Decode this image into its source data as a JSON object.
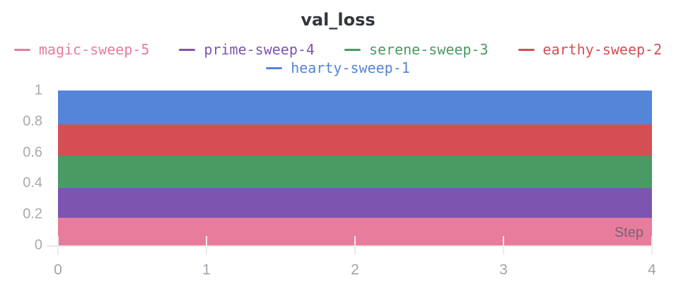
{
  "title": "val_loss",
  "legend": {
    "rows": [
      [
        {
          "label": "magic-sweep-5",
          "color": "#E87C9D"
        },
        {
          "label": "prime-sweep-4",
          "color": "#7C55B1"
        },
        {
          "label": "serene-sweep-3",
          "color": "#4A9A64"
        },
        {
          "label": "earthy-sweep-2",
          "color": "#D54E53"
        }
      ],
      [
        {
          "label": "hearty-sweep-1",
          "color": "#5485D9"
        }
      ]
    ]
  },
  "chart_data": {
    "type": "area",
    "title": "val_loss",
    "xlabel": "Step",
    "ylabel": "",
    "x": [
      0,
      1,
      2,
      3,
      4
    ],
    "xlim": [
      0,
      4
    ],
    "ylim": [
      0,
      1
    ],
    "grid": false,
    "legend_position": "top",
    "fill": "to-zero (overlapping constant-value areas, largest drawn behind)",
    "series": [
      {
        "name": "hearty-sweep-1",
        "color": "#5485D9",
        "values": [
          1.0,
          1.0,
          1.0,
          1.0,
          1.0
        ]
      },
      {
        "name": "earthy-sweep-2",
        "color": "#D54E53",
        "values": [
          0.78,
          0.78,
          0.78,
          0.78,
          0.78
        ]
      },
      {
        "name": "serene-sweep-3",
        "color": "#4A9A64",
        "values": [
          0.58,
          0.58,
          0.58,
          0.58,
          0.58
        ]
      },
      {
        "name": "prime-sweep-4",
        "color": "#7C55B1",
        "values": [
          0.37,
          0.37,
          0.37,
          0.37,
          0.37
        ]
      },
      {
        "name": "magic-sweep-5",
        "color": "#E87C9D",
        "values": [
          0.18,
          0.18,
          0.18,
          0.18,
          0.18
        ]
      }
    ],
    "x_ticks": [
      {
        "value": 0,
        "label": "0"
      },
      {
        "value": 1,
        "label": "1"
      },
      {
        "value": 2,
        "label": "2"
      },
      {
        "value": 3,
        "label": "3"
      },
      {
        "value": 4,
        "label": "4"
      }
    ],
    "y_ticks": [
      {
        "value": 0,
        "label": "0"
      },
      {
        "value": 0.2,
        "label": "0.2"
      },
      {
        "value": 0.4,
        "label": "0.4"
      },
      {
        "value": 0.6,
        "label": "0.6"
      },
      {
        "value": 0.8,
        "label": "0.8"
      },
      {
        "value": 1,
        "label": "1"
      }
    ]
  }
}
